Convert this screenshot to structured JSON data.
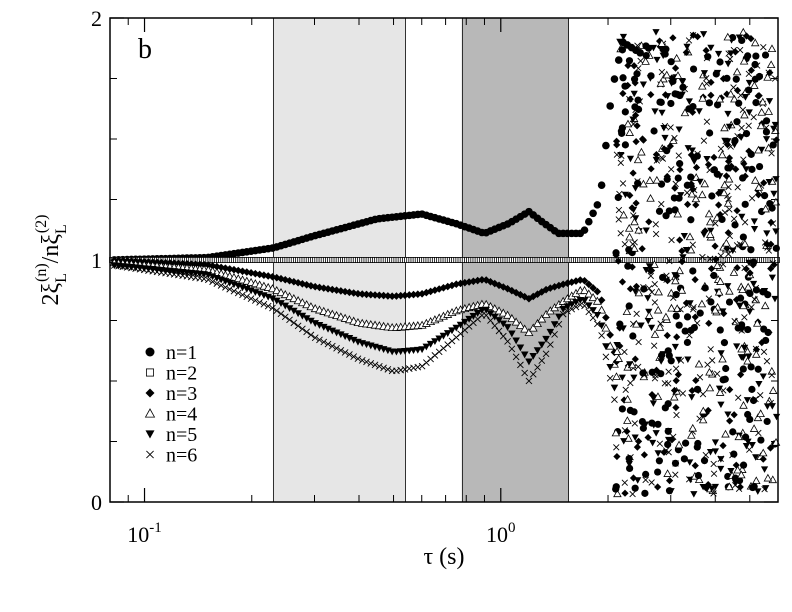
{
  "chart_data": {
    "type": "scatter",
    "panel_label": "b",
    "xscale": "log",
    "xlim": [
      0.08,
      6.0
    ],
    "ylim": [
      0,
      2
    ],
    "xlabel": "τ (s)",
    "ylabel_main": "2ξ",
    "ylabel_sub1": "L",
    "ylabel_sup1": "(n)",
    "ylabel_mid": "/nξ",
    "ylabel_sub2": "L",
    "ylabel_sup2": "(2)",
    "y_ticks": [
      {
        "value": 0,
        "label": "0"
      },
      {
        "value": 1,
        "label": "1"
      },
      {
        "value": 2,
        "label": "2"
      }
    ],
    "y_minor_ticks": [
      0.25,
      0.5,
      0.75,
      1.25,
      1.5,
      1.75
    ],
    "x_ticks": [
      {
        "value": 0.1,
        "base": "10",
        "exp": "-1"
      },
      {
        "value": 1.0,
        "base": "10",
        "exp": "0"
      }
    ],
    "shaded_regions": [
      {
        "from": 0.23,
        "to": 0.54,
        "color": "#e6e6e6"
      },
      {
        "from": 0.78,
        "to": 1.55,
        "color": "#b8b8b8"
      }
    ],
    "legend_position": "lower-left",
    "series": [
      {
        "name": "n=1",
        "marker": "circle",
        "points": [
          [
            0.08,
            1.0
          ],
          [
            0.15,
            1.01
          ],
          [
            0.23,
            1.05
          ],
          [
            0.3,
            1.1
          ],
          [
            0.45,
            1.17
          ],
          [
            0.6,
            1.19
          ],
          [
            0.75,
            1.15
          ],
          [
            0.9,
            1.11
          ],
          [
            1.05,
            1.15
          ],
          [
            1.2,
            1.2
          ],
          [
            1.3,
            1.16
          ],
          [
            1.45,
            1.11
          ],
          [
            1.7,
            1.11
          ],
          [
            1.9,
            1.25
          ],
          [
            2.05,
            1.7
          ],
          [
            2.2,
            1.9
          ],
          [
            2.5,
            1.85
          ]
        ]
      },
      {
        "name": "n=2",
        "marker": "square",
        "points": [
          [
            0.08,
            1.0
          ],
          [
            1.0,
            1.0
          ],
          [
            6.0,
            1.0
          ]
        ]
      },
      {
        "name": "n=3",
        "marker": "diamond",
        "points": [
          [
            0.08,
            1.0
          ],
          [
            0.15,
            0.98
          ],
          [
            0.23,
            0.93
          ],
          [
            0.3,
            0.89
          ],
          [
            0.4,
            0.86
          ],
          [
            0.5,
            0.85
          ],
          [
            0.6,
            0.86
          ],
          [
            0.75,
            0.9
          ],
          [
            0.9,
            0.92
          ],
          [
            1.05,
            0.88
          ],
          [
            1.2,
            0.84
          ],
          [
            1.35,
            0.88
          ],
          [
            1.5,
            0.9
          ],
          [
            1.7,
            0.92
          ],
          [
            1.9,
            0.86
          ],
          [
            2.1,
            0.6
          ]
        ]
      },
      {
        "name": "n=4",
        "marker": "triangle",
        "points": [
          [
            0.08,
            0.99
          ],
          [
            0.15,
            0.96
          ],
          [
            0.23,
            0.88
          ],
          [
            0.3,
            0.8
          ],
          [
            0.4,
            0.74
          ],
          [
            0.5,
            0.72
          ],
          [
            0.6,
            0.73
          ],
          [
            0.75,
            0.79
          ],
          [
            0.9,
            0.82
          ],
          [
            1.05,
            0.77
          ],
          [
            1.2,
            0.7
          ],
          [
            1.35,
            0.78
          ],
          [
            1.5,
            0.83
          ],
          [
            1.7,
            0.88
          ],
          [
            1.9,
            0.82
          ],
          [
            2.1,
            0.55
          ]
        ]
      },
      {
        "name": "n=5",
        "marker": "down-triangle",
        "points": [
          [
            0.08,
            0.98
          ],
          [
            0.15,
            0.94
          ],
          [
            0.23,
            0.84
          ],
          [
            0.3,
            0.74
          ],
          [
            0.4,
            0.66
          ],
          [
            0.5,
            0.62
          ],
          [
            0.6,
            0.63
          ],
          [
            0.75,
            0.72
          ],
          [
            0.9,
            0.8
          ],
          [
            1.05,
            0.72
          ],
          [
            1.2,
            0.58
          ],
          [
            1.35,
            0.68
          ],
          [
            1.5,
            0.8
          ],
          [
            1.7,
            0.84
          ],
          [
            1.9,
            0.76
          ],
          [
            2.1,
            0.45
          ]
        ]
      },
      {
        "name": "n=6",
        "marker": "x",
        "points": [
          [
            0.08,
            0.98
          ],
          [
            0.15,
            0.92
          ],
          [
            0.23,
            0.8
          ],
          [
            0.3,
            0.68
          ],
          [
            0.4,
            0.59
          ],
          [
            0.5,
            0.54
          ],
          [
            0.6,
            0.56
          ],
          [
            0.75,
            0.68
          ],
          [
            0.9,
            0.78
          ],
          [
            1.05,
            0.66
          ],
          [
            1.2,
            0.5
          ],
          [
            1.35,
            0.62
          ],
          [
            1.5,
            0.78
          ],
          [
            1.7,
            0.82
          ],
          [
            1.9,
            0.72
          ],
          [
            2.1,
            0.4
          ]
        ]
      }
    ]
  }
}
